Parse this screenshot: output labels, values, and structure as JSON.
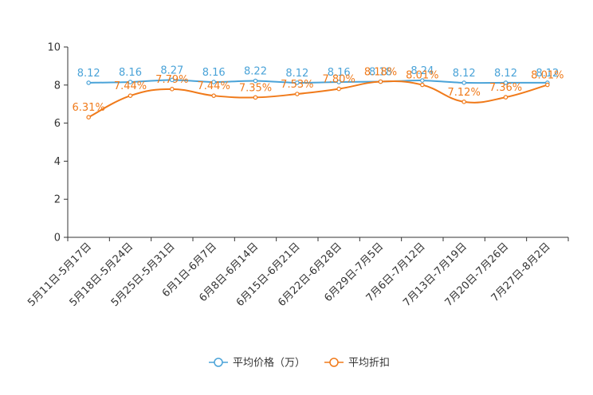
{
  "chart_data": {
    "type": "line",
    "title": "",
    "xlabel": "",
    "ylabel": "",
    "ylim": [
      0,
      10
    ],
    "yticks": [
      0,
      2,
      4,
      6,
      8,
      10
    ],
    "grid": false,
    "legend_position": "bottom-center",
    "categories": [
      "5月11日-5月17日",
      "5月18日-5月24日",
      "5月25日-5月31日",
      "6月1日-6月7日",
      "6月8日-6月14日",
      "6月15日-6月21日",
      "6月22日-6月28日",
      "6月29日-7月5日",
      "7月6日-7月12日",
      "7月13日-7月19日",
      "7月20日-7月26日",
      "7月27日-8月2日"
    ],
    "series": [
      {
        "name": "平均价格（万）",
        "color": "#4aa3d8",
        "values": [
          8.12,
          8.16,
          8.27,
          8.16,
          8.22,
          8.12,
          8.16,
          8.18,
          8.24,
          8.12,
          8.12,
          8.12
        ],
        "labels": [
          "8.12",
          "8.16",
          "8.27",
          "8.16",
          "8.22",
          "8.12",
          "8.16",
          "8.18",
          "8.24",
          "8.12",
          "8.12",
          "8.12"
        ]
      },
      {
        "name": "平均折扣",
        "color": "#f07a1a",
        "values": [
          6.31,
          7.44,
          7.79,
          7.44,
          7.35,
          7.53,
          7.8,
          8.18,
          8.01,
          7.12,
          7.36,
          8.01
        ],
        "labels": [
          "6.31%",
          "7.44%",
          "7.79%",
          "7.44%",
          "7.35%",
          "7.53%",
          "7.80%",
          "8.18%",
          "8.01%",
          "7.12%",
          "7.36%",
          "8.01%"
        ]
      }
    ]
  }
}
